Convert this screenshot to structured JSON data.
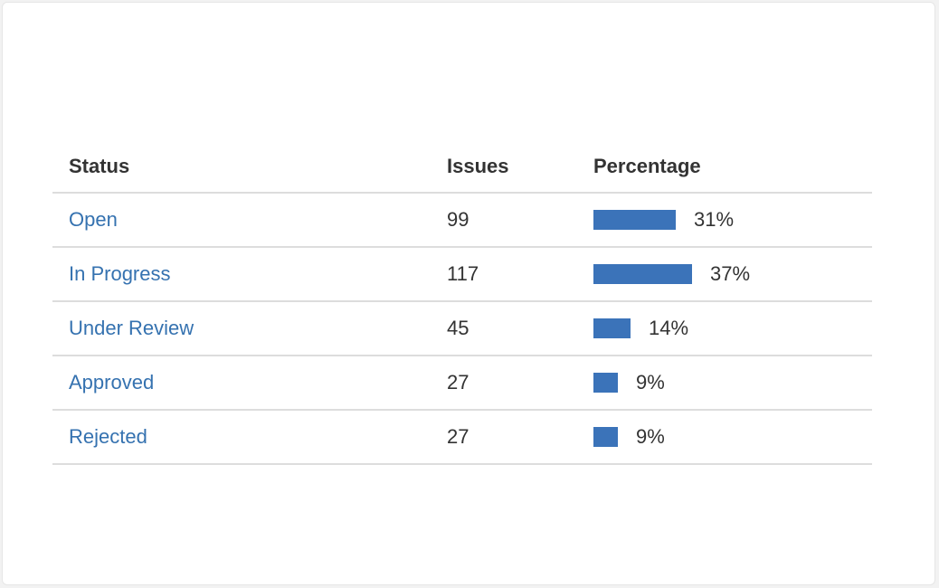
{
  "table": {
    "headers": {
      "status": "Status",
      "issues": "Issues",
      "percentage": "Percentage"
    },
    "rows": [
      {
        "status": "Open",
        "issues": "99",
        "percent_label": "31%",
        "percent": 31
      },
      {
        "status": "In Progress",
        "issues": "117",
        "percent_label": "37%",
        "percent": 37
      },
      {
        "status": "Under Review",
        "issues": "45",
        "percent_label": "14%",
        "percent": 14
      },
      {
        "status": "Approved",
        "issues": "27",
        "percent_label": "9%",
        "percent": 9
      },
      {
        "status": "Rejected",
        "issues": "27",
        "percent_label": "9%",
        "percent": 9
      }
    ]
  },
  "colors": {
    "link": "#3572b0",
    "bar": "#3b73b9",
    "text": "#333333"
  }
}
